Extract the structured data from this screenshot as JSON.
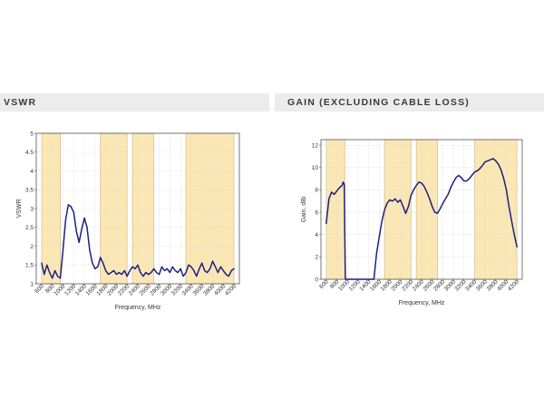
{
  "panels": {
    "vswr": {
      "title": "VSWR"
    },
    "gain": {
      "title": "GAIN (EXCLUDING CABLE LOSS)"
    }
  },
  "colors": {
    "band_fill": "#fbe7b4",
    "band_edge": "#d7c08c",
    "curve": "#1f1f80",
    "grid": "#d9d9d9",
    "axis": "#555555",
    "header_bg": "#ececec"
  },
  "chart_data": [
    {
      "type": "line",
      "title": "",
      "xlabel": "Frequency, MHz",
      "ylabel": "VSWR",
      "xlim": [
        500,
        4300
      ],
      "ylim": [
        1,
        5
      ],
      "xticks": [
        600,
        800,
        1000,
        1200,
        1400,
        1600,
        1800,
        2000,
        2200,
        2400,
        2600,
        2800,
        3000,
        3200,
        3400,
        3600,
        3800,
        4000,
        4200
      ],
      "yticks": [
        1,
        1.5,
        2,
        2.5,
        3,
        3.5,
        4,
        4.5,
        5
      ],
      "ytick_labels": [
        "1",
        "1.5",
        "2",
        "2.5",
        "3",
        "3.5",
        "4",
        "4.5",
        "5"
      ],
      "grid": true,
      "bands": [
        [
          600,
          950
        ],
        [
          1700,
          2200
        ],
        [
          2300,
          2700
        ],
        [
          3300,
          4200
        ]
      ],
      "series": [
        {
          "x": [
            600,
            650,
            700,
            750,
            800,
            850,
            900,
            950,
            1000,
            1050,
            1100,
            1150,
            1200,
            1250,
            1300,
            1350,
            1400,
            1450,
            1500,
            1550,
            1600,
            1650,
            1700,
            1750,
            1800,
            1850,
            1900,
            1950,
            2000,
            2050,
            2100,
            2150,
            2200,
            2250,
            2300,
            2350,
            2400,
            2450,
            2500,
            2550,
            2600,
            2650,
            2700,
            2750,
            2800,
            2850,
            2900,
            2950,
            3000,
            3050,
            3100,
            3150,
            3200,
            3250,
            3300,
            3350,
            3400,
            3450,
            3500,
            3550,
            3600,
            3650,
            3700,
            3750,
            3800,
            3850,
            3900,
            3950,
            4000,
            4050,
            4100,
            4150,
            4200
          ],
          "values": [
            1.55,
            1.25,
            1.5,
            1.3,
            1.15,
            1.35,
            1.2,
            1.15,
            1.9,
            2.7,
            3.1,
            3.05,
            2.9,
            2.4,
            2.1,
            2.45,
            2.75,
            2.5,
            1.9,
            1.55,
            1.4,
            1.45,
            1.7,
            1.55,
            1.35,
            1.25,
            1.3,
            1.35,
            1.25,
            1.3,
            1.25,
            1.35,
            1.2,
            1.35,
            1.45,
            1.4,
            1.5,
            1.3,
            1.2,
            1.3,
            1.25,
            1.3,
            1.4,
            1.3,
            1.25,
            1.45,
            1.35,
            1.4,
            1.3,
            1.45,
            1.35,
            1.3,
            1.4,
            1.2,
            1.3,
            1.5,
            1.45,
            1.35,
            1.2,
            1.4,
            1.55,
            1.35,
            1.3,
            1.4,
            1.6,
            1.45,
            1.3,
            1.45,
            1.35,
            1.25,
            1.2,
            1.35,
            1.4
          ]
        }
      ]
    },
    {
      "type": "line",
      "title": "",
      "xlabel": "Frequency, MHz",
      "ylabel": "Gain, dBi",
      "xlim": [
        500,
        4300
      ],
      "ylim": [
        0,
        12.5
      ],
      "xticks": [
        600,
        800,
        1000,
        1200,
        1400,
        1600,
        1800,
        2000,
        2200,
        2400,
        2600,
        2800,
        3000,
        3200,
        3400,
        3600,
        3800,
        4000,
        4200
      ],
      "yticks": [
        0,
        2,
        4,
        6,
        8,
        10,
        12
      ],
      "ytick_labels": [
        "0",
        "2",
        "4",
        "6",
        "8",
        "10",
        "12"
      ],
      "grid": true,
      "bands": [
        [
          600,
          950
        ],
        [
          1700,
          2200
        ],
        [
          2300,
          2700
        ],
        [
          3400,
          4200
        ]
      ],
      "series": [
        {
          "x": [
            600,
            650,
            700,
            750,
            800,
            850,
            900,
            920,
            940,
            950,
            960,
            1000,
            1200,
            1400,
            1500,
            1550,
            1600,
            1650,
            1700,
            1750,
            1800,
            1850,
            1900,
            1950,
            2000,
            2050,
            2100,
            2150,
            2200,
            2250,
            2300,
            2350,
            2400,
            2450,
            2500,
            2550,
            2600,
            2650,
            2700,
            2750,
            2800,
            2850,
            2900,
            2950,
            3000,
            3050,
            3100,
            3150,
            3200,
            3250,
            3300,
            3350,
            3400,
            3450,
            3500,
            3550,
            3600,
            3650,
            3700,
            3750,
            3800,
            3850,
            3900,
            3950,
            4000,
            4050,
            4100,
            4150,
            4200
          ],
          "values": [
            5.0,
            7.2,
            7.8,
            7.6,
            7.9,
            8.2,
            8.4,
            8.7,
            8.5,
            4.0,
            0,
            0,
            0,
            0,
            0,
            2.3,
            3.8,
            5.2,
            6.2,
            6.8,
            7.1,
            7.0,
            7.2,
            6.9,
            7.1,
            6.5,
            5.9,
            6.5,
            7.5,
            8.0,
            8.4,
            8.7,
            8.6,
            8.3,
            7.8,
            7.2,
            6.5,
            6.0,
            5.9,
            6.3,
            6.8,
            7.2,
            7.6,
            8.2,
            8.7,
            9.1,
            9.3,
            9.1,
            8.8,
            8.8,
            9.0,
            9.3,
            9.6,
            9.7,
            9.9,
            10.2,
            10.5,
            10.6,
            10.7,
            10.8,
            10.6,
            10.3,
            9.8,
            9.0,
            8.0,
            6.5,
            5.2,
            4.0,
            2.9
          ]
        }
      ]
    }
  ]
}
